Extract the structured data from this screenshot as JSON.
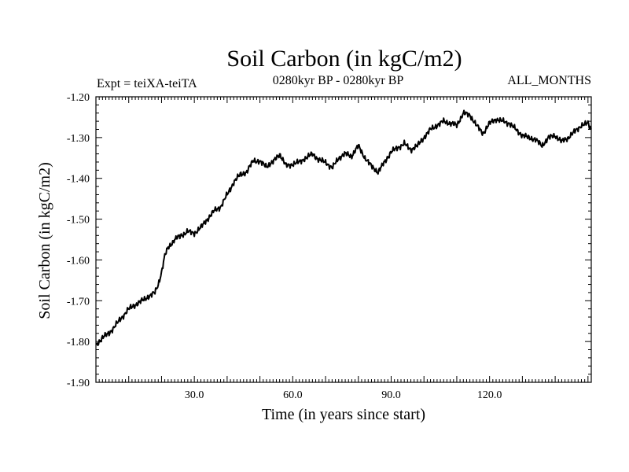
{
  "chart_data": {
    "type": "line",
    "title": "Soil Carbon (in kgC/m2)",
    "subtitle_left": "Expt = teiXA-teiTA",
    "subtitle_center": "0280kyr BP - 0280kyr BP",
    "subtitle_right": "ALL_MONTHS",
    "xlabel": "Time (in years since start)",
    "ylabel": "Soil Carbon (in kgC/m2)",
    "xlim": [
      0,
      151
    ],
    "ylim": [
      -1.9,
      -1.2
    ],
    "x_ticks": [
      30,
      60,
      90,
      120
    ],
    "x_tick_labels": [
      "30.0",
      "60.0",
      "90.0",
      "120.0"
    ],
    "y_ticks": [
      -1.2,
      -1.3,
      -1.4,
      -1.5,
      -1.6,
      -1.7,
      -1.8,
      -1.9
    ],
    "y_tick_labels": [
      "-1.20",
      "-1.30",
      "-1.40",
      "-1.50",
      "-1.60",
      "-1.70",
      "-1.80",
      "-1.90"
    ],
    "series": [
      {
        "name": "Soil Carbon",
        "color": "#000000",
        "x": [
          0,
          2,
          4,
          6,
          8,
          10,
          12,
          14,
          16,
          18,
          19,
          20,
          21,
          22,
          23,
          24,
          25,
          26,
          28,
          30,
          32,
          34,
          36,
          38,
          40,
          42,
          44,
          46,
          48,
          50,
          52,
          54,
          56,
          58,
          60,
          62,
          64,
          66,
          68,
          70,
          72,
          74,
          76,
          78,
          80,
          82,
          84,
          86,
          88,
          90,
          92,
          94,
          96,
          98,
          100,
          102,
          104,
          106,
          108,
          110,
          112,
          114,
          116,
          118,
          120,
          122,
          124,
          126,
          128,
          130,
          132,
          134,
          136,
          138,
          140,
          142,
          144,
          146,
          148,
          150,
          151
        ],
        "values": [
          -1.81,
          -1.79,
          -1.78,
          -1.76,
          -1.74,
          -1.72,
          -1.71,
          -1.7,
          -1.69,
          -1.68,
          -1.66,
          -1.63,
          -1.59,
          -1.57,
          -1.56,
          -1.55,
          -1.545,
          -1.54,
          -1.53,
          -1.535,
          -1.52,
          -1.5,
          -1.48,
          -1.47,
          -1.44,
          -1.41,
          -1.39,
          -1.385,
          -1.355,
          -1.36,
          -1.37,
          -1.36,
          -1.34,
          -1.37,
          -1.365,
          -1.36,
          -1.35,
          -1.34,
          -1.355,
          -1.36,
          -1.375,
          -1.35,
          -1.34,
          -1.345,
          -1.32,
          -1.35,
          -1.37,
          -1.385,
          -1.36,
          -1.335,
          -1.325,
          -1.315,
          -1.33,
          -1.32,
          -1.3,
          -1.28,
          -1.27,
          -1.26,
          -1.265,
          -1.27,
          -1.24,
          -1.245,
          -1.27,
          -1.29,
          -1.265,
          -1.255,
          -1.26,
          -1.265,
          -1.28,
          -1.295,
          -1.3,
          -1.305,
          -1.32,
          -1.3,
          -1.295,
          -1.31,
          -1.3,
          -1.285,
          -1.27,
          -1.265,
          -1.28
        ]
      }
    ]
  }
}
